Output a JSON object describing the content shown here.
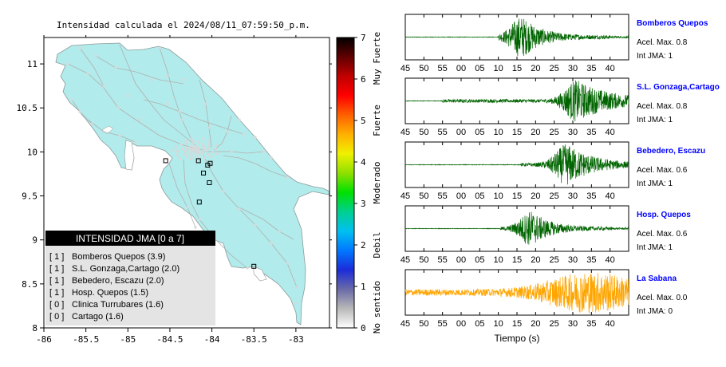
{
  "title": "Intensidad calculada el 2024/08/11_07:59:50_p.m.",
  "colors": {
    "land": "#b2ebeb",
    "sea": "#ffffff",
    "road": "#b0b0b0",
    "station": "#d8d8d8",
    "trace_default": "#006400",
    "trace_highlight": "#ffa500",
    "station_name": "#0000ff",
    "legend_header_bg": "#000000",
    "legend_body_bg": "#e4e4e4"
  },
  "chart_data": [
    {
      "type": "map",
      "xlim": [
        -86,
        -82.6
      ],
      "ylim": [
        8,
        11.3
      ],
      "x_ticks": [
        -86,
        -85.5,
        -85,
        -84.5,
        -84,
        -83.5,
        -83
      ],
      "x_tick_labels": [
        "-86",
        "-85.5",
        "-85",
        "-84.5",
        "-84",
        "-83.5",
        "-83"
      ],
      "y_ticks": [
        8,
        8.5,
        9,
        9.5,
        10,
        10.5,
        11
      ],
      "y_tick_labels": [
        "8",
        "8.5",
        "9",
        "9.5",
        "10",
        "10.5",
        "11"
      ],
      "station_markers": [
        {
          "lon": -84.55,
          "lat": 9.9
        },
        {
          "lon": -84.16,
          "lat": 9.9
        },
        {
          "lon": -84.05,
          "lat": 9.85
        },
        {
          "lon": -84.02,
          "lat": 9.87
        },
        {
          "lon": -84.1,
          "lat": 9.76
        },
        {
          "lon": -84.03,
          "lat": 9.65
        },
        {
          "lon": -84.15,
          "lat": 9.43
        },
        {
          "lon": -83.5,
          "lat": 8.7
        }
      ],
      "legend": {
        "title": "INTENSIDAD JMA [0 a 7]",
        "entries": [
          {
            "level": "[ 1 ]",
            "name": "Bomberos Quepos (3.9)"
          },
          {
            "level": "[ 1 ]",
            "name": "S.L. Gonzaga,Cartago (2.0)"
          },
          {
            "level": "[ 1 ]",
            "name": "Bebedero, Escazu (2.0)"
          },
          {
            "level": "[ 1 ]",
            "name": "Hosp. Quepos (1.5)"
          },
          {
            "level": "[ 0 ]",
            "name": "Clinica Turrubares (1.6)"
          },
          {
            "level": "[ 0 ]",
            "name": "Cartago (1.6)"
          }
        ]
      }
    },
    {
      "type": "colorbar",
      "range": [
        0,
        7
      ],
      "ticks": [
        0,
        1,
        2,
        3,
        4,
        5,
        6,
        7
      ],
      "tick_labels": [
        "0",
        "1",
        "2",
        "3",
        "4",
        "5",
        "6",
        "7"
      ],
      "category_labels": [
        "No sentido",
        "Debil",
        "Moderado",
        "Fuerte",
        "Muy Fuerte"
      ],
      "colors": [
        "#ffffff",
        "#b8b8b8",
        "#6a6aa8",
        "#1c2cd8",
        "#0078ff",
        "#00c0f0",
        "#00d090",
        "#00e000",
        "#90e000",
        "#f0f000",
        "#ffb000",
        "#ff6000",
        "#ff0000",
        "#c00000",
        "#600000",
        "#000000"
      ]
    },
    {
      "type": "line",
      "subtype": "seismograms",
      "xlabel": "Tiempo (s)",
      "x_tick_labels": [
        "45",
        "50",
        "55",
        "00",
        "05",
        "10",
        "15",
        "20",
        "25",
        "30",
        "35",
        "40"
      ],
      "traces": [
        {
          "station": "Bomberos Quepos",
          "acel_max": "Acel. Max. 0.8",
          "int_jma": "Int JMA: 1",
          "color": "#006400",
          "onset_s": 25,
          "peak_s": 31.5,
          "amplitude": 1.0,
          "duration_s": 30
        },
        {
          "station": "S.L. Gonzaga,Cartago",
          "acel_max": "Acel. Max. 0.8",
          "int_jma": "Int JMA: 1",
          "color": "#006400",
          "onset_s": 10,
          "peak_s": 46,
          "amplitude": 1.0,
          "duration_s": 55
        },
        {
          "station": "Bebedero, Escazu",
          "acel_max": "Acel. Max. 0.6",
          "int_jma": "Int JMA: 1",
          "color": "#006400",
          "onset_s": 31,
          "peak_s": 43.5,
          "amplitude": 1.0,
          "duration_s": 40
        },
        {
          "station": "Hosp. Quepos",
          "acel_max": "Acel. Max. 0.6",
          "int_jma": "Int JMA: 1",
          "color": "#006400",
          "onset_s": 25.5,
          "peak_s": 34,
          "amplitude": 0.85,
          "duration_s": 30
        },
        {
          "station": "La Sabana",
          "acel_max": "Acel. Max. 0.0",
          "int_jma": "Int JMA: 0",
          "color": "#ffa500",
          "onset_s": 0,
          "peak_s": 50,
          "amplitude": 1.0,
          "duration_s": 60
        }
      ]
    }
  ]
}
